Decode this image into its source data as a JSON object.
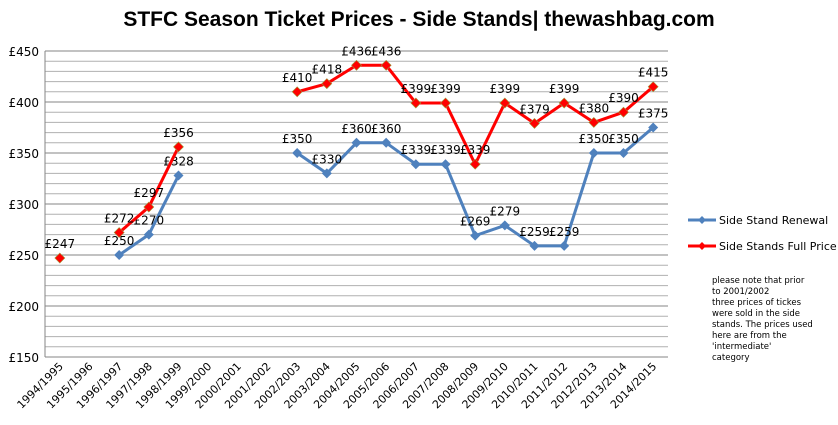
{
  "chart_data": {
    "type": "line",
    "title": "STFC Season Ticket Prices - Side Stands| thewashbag.com",
    "categories": [
      "1994/1995",
      "1995/1996",
      "1996/1997",
      "1997/1998",
      "1998/1999",
      "1999/2000",
      "2000/2001",
      "2001/2002",
      "2002/2003",
      "2003/2004",
      "2004/2005",
      "2005/2006",
      "2006/2007",
      "2007/2008",
      "2008/2009",
      "2009/2010",
      "2010/2011",
      "2011/2012",
      "2012/2013",
      "2013/2014",
      "2014/2015"
    ],
    "ylim": [
      150,
      450
    ],
    "yticks": [
      150,
      200,
      250,
      300,
      350,
      400,
      450
    ],
    "ytick_prefix": "£",
    "grid": true,
    "legend": "right",
    "series": [
      {
        "name": "Side Stand Renewal",
        "color": "#4f81bd",
        "values": [
          null,
          null,
          250,
          270,
          328,
          null,
          null,
          null,
          350,
          330,
          360,
          360,
          339,
          339,
          269,
          279,
          259,
          259,
          350,
          350,
          375
        ]
      },
      {
        "name": "Side Stands Full Price",
        "color": "#ff0000",
        "values": [
          247,
          null,
          272,
          297,
          356,
          null,
          null,
          null,
          410,
          418,
          436,
          436,
          399,
          399,
          339,
          399,
          379,
          399,
          380,
          390,
          415
        ]
      }
    ],
    "note": [
      "please note that prior",
      "to 2001/2002",
      "three prices of tickes",
      "were sold  in the side",
      "stands. The prices used",
      "here are from the",
      "'intermediate'",
      "category"
    ]
  }
}
